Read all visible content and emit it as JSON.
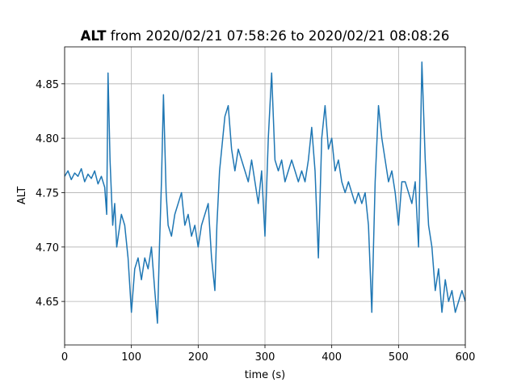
{
  "chart_data": {
    "type": "line",
    "title": {
      "variable": "ALT",
      "range": "from 2020/02/21 07:58:26 to 2020/02/21 08:08:26"
    },
    "x_label": "time (s)",
    "y_label": "ALT",
    "x": [
      0,
      5,
      10,
      15,
      20,
      25,
      30,
      35,
      40,
      45,
      50,
      55,
      60,
      63,
      65,
      68,
      72,
      75,
      78,
      85,
      90,
      95,
      100,
      105,
      110,
      115,
      120,
      125,
      130,
      135,
      139,
      142,
      145,
      148,
      152,
      155,
      160,
      165,
      170,
      175,
      180,
      185,
      190,
      195,
      200,
      205,
      210,
      215,
      220,
      225,
      228,
      232,
      240,
      245,
      250,
      255,
      260,
      265,
      270,
      275,
      280,
      285,
      290,
      295,
      300,
      305,
      310,
      315,
      320,
      325,
      330,
      335,
      340,
      345,
      350,
      355,
      360,
      365,
      370,
      375,
      380,
      385,
      390,
      395,
      400,
      405,
      410,
      415,
      420,
      425,
      430,
      435,
      440,
      445,
      450,
      455,
      460,
      465,
      470,
      475,
      480,
      485,
      490,
      495,
      500,
      505,
      510,
      515,
      520,
      525,
      530,
      535,
      540,
      545,
      550,
      555,
      560,
      565,
      570,
      575,
      580,
      585,
      590,
      595,
      600
    ],
    "series": [
      {
        "name": "ALT",
        "color": "#1f77b4",
        "values": [
          4.765,
          4.77,
          4.762,
          4.768,
          4.765,
          4.772,
          4.76,
          4.767,
          4.763,
          4.77,
          4.758,
          4.765,
          4.755,
          4.73,
          4.86,
          4.78,
          4.72,
          4.74,
          4.7,
          4.73,
          4.72,
          4.69,
          4.64,
          4.68,
          4.69,
          4.67,
          4.69,
          4.68,
          4.7,
          4.66,
          4.63,
          4.7,
          4.76,
          4.84,
          4.75,
          4.72,
          4.71,
          4.73,
          4.74,
          4.75,
          4.72,
          4.73,
          4.71,
          4.72,
          4.7,
          4.72,
          4.73,
          4.74,
          4.69,
          4.66,
          4.72,
          4.77,
          4.82,
          4.83,
          4.79,
          4.77,
          4.79,
          4.78,
          4.77,
          4.76,
          4.78,
          4.76,
          4.74,
          4.77,
          4.71,
          4.8,
          4.86,
          4.78,
          4.77,
          4.78,
          4.76,
          4.77,
          4.78,
          4.77,
          4.76,
          4.77,
          4.76,
          4.78,
          4.81,
          4.77,
          4.69,
          4.8,
          4.83,
          4.79,
          4.8,
          4.77,
          4.78,
          4.76,
          4.75,
          4.76,
          4.75,
          4.74,
          4.75,
          4.74,
          4.75,
          4.72,
          4.64,
          4.76,
          4.83,
          4.8,
          4.78,
          4.76,
          4.77,
          4.75,
          4.72,
          4.76,
          4.76,
          4.75,
          4.74,
          4.76,
          4.7,
          4.87,
          4.78,
          4.72,
          4.7,
          4.66,
          4.68,
          4.64,
          4.67,
          4.65,
          4.66,
          4.64,
          4.65,
          4.66,
          4.65
        ]
      }
    ],
    "xlim": [
      0,
      600
    ],
    "xticks": [
      0,
      100,
      200,
      300,
      400,
      500,
      600
    ],
    "ylim": [
      4.61,
      4.884
    ],
    "yticks": [
      4.65,
      {
        "value": 4.7,
        "label": "4.70"
      },
      4.75,
      {
        "value": 4.8,
        "label": "4.80"
      },
      4.85
    ],
    "grid": true
  }
}
